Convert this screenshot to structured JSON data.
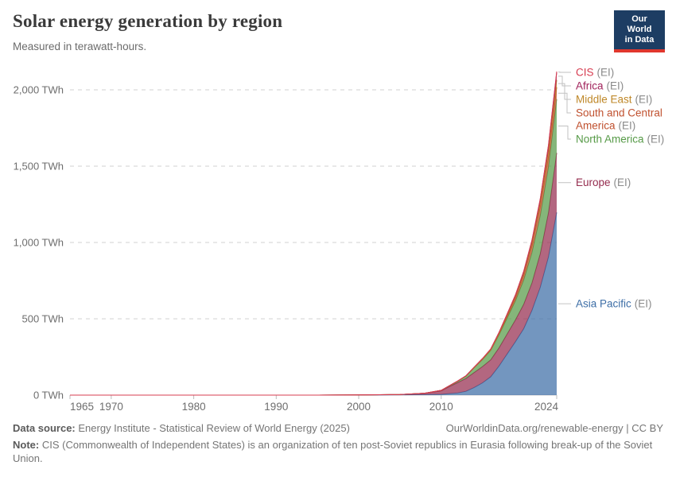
{
  "header": {
    "title": "Solar energy generation by region",
    "subtitle": "Measured in terawatt-hours."
  },
  "logo": {
    "line1": "Our World",
    "line2": "in Data",
    "bg": "#1d3d63",
    "accent": "#e0372d"
  },
  "theme": {
    "title_color": "#3a3a3a",
    "subtitle_color": "#6b6b6b",
    "axis_text": "#6e6e6e",
    "grid_color": "#e0e0e0",
    "axis_line": "#cdcdcd",
    "connector": "#c2c2c2",
    "suffix_color": "#8a8a8a",
    "footer_text": "#757575",
    "footer_label": "#5a5a5a"
  },
  "chart_data": {
    "type": "area",
    "stacked": true,
    "title": "Solar energy generation by region",
    "ylabel": "terawatt-hours",
    "xlim": [
      1965,
      2024
    ],
    "ylim": [
      0,
      2000
    ],
    "grid": "horizontal-dashed",
    "legend_position": "right-annotations",
    "yticks": [
      0,
      500,
      1000,
      1500,
      2000
    ],
    "ytick_labels": [
      "0 TWh",
      "500 TWh",
      "1,000 TWh",
      "1,500 TWh",
      "2,000 TWh"
    ],
    "xticks": [
      1965,
      1970,
      1980,
      1990,
      2000,
      2010,
      2024
    ],
    "x": [
      1965,
      1975,
      1985,
      1995,
      2000,
      2005,
      2008,
      2010,
      2011,
      2012,
      2013,
      2014,
      2015,
      2016,
      2017,
      2018,
      2019,
      2020,
      2021,
      2022,
      2023,
      2024
    ],
    "stack_order": "bottom-to-top",
    "series": [
      {
        "name": "Asia Pacific",
        "suffix": "(EI)",
        "color": "#3d6ea6",
        "values": [
          0,
          0,
          0,
          0,
          0.5,
          2,
          3.5,
          5,
          10,
          14,
          25,
          50,
          80,
          120,
          190,
          270,
          350,
          435,
          555,
          705,
          905,
          1197
        ]
      },
      {
        "name": "Europe",
        "suffix": "(EI)",
        "color": "#952d4f",
        "values": [
          0,
          0,
          0,
          0,
          0.1,
          1.5,
          7.5,
          23,
          46,
          68,
          84,
          98,
          107,
          111,
          119,
          131,
          143,
          160,
          180,
          220,
          290,
          390
        ]
      },
      {
        "name": "North America",
        "suffix": "(EI)",
        "color": "#569a47",
        "values": [
          0,
          0,
          0,
          0,
          0.5,
          0.6,
          1.5,
          3,
          5,
          9,
          15,
          32,
          46,
          62,
          85,
          105,
          125,
          160,
          200,
          250,
          300,
          352
        ]
      },
      {
        "name": "South and Central America",
        "suffix": "(EI)",
        "color": "#c0512f",
        "label_lines": [
          "South and Central",
          "America"
        ],
        "values": [
          0,
          0,
          0,
          0,
          0,
          0,
          0,
          0,
          0.5,
          0.5,
          1,
          1,
          2,
          3,
          6,
          12,
          18,
          28,
          42,
          58,
          68,
          78
        ]
      },
      {
        "name": "Middle East",
        "suffix": "(EI)",
        "color": "#bf8829",
        "values": [
          0,
          0,
          0,
          0,
          0,
          0,
          0,
          0,
          0.2,
          0.5,
          0.5,
          1,
          1.5,
          2,
          3.5,
          5,
          8,
          12,
          18,
          26,
          38,
          48
        ]
      },
      {
        "name": "Africa",
        "suffix": "(EI)",
        "color": "#a1245c",
        "values": [
          0,
          0,
          0,
          0,
          0,
          0,
          0,
          0.2,
          0.5,
          1,
          1.5,
          2,
          3,
          4,
          6,
          9,
          12,
          15,
          18,
          22,
          32,
          48
        ]
      },
      {
        "name": "CIS",
        "suffix": "(EI)",
        "color": "#d73c50",
        "values": [
          0,
          0,
          0,
          0,
          0,
          0,
          0,
          0,
          0,
          0,
          0,
          0,
          0,
          0.5,
          0.5,
          1,
          1.5,
          2,
          3,
          4,
          5,
          7
        ]
      }
    ]
  },
  "footer": {
    "source_label": "Data source:",
    "source_text": "Energy Institute - Statistical Review of World Energy (2025)",
    "link": "OurWorldinData.org/renewable-energy | CC BY",
    "note_label": "Note:",
    "note_text": "CIS (Commonwealth of Independent States) is an organization of ten post-Soviet republics in Eurasia following break-up of the Soviet Union."
  }
}
